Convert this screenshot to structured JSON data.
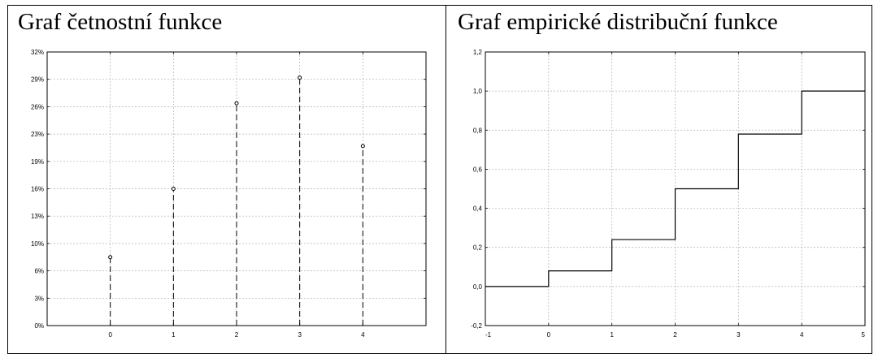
{
  "chart_data": [
    {
      "type": "stem",
      "title": "Graf četnostní funkce",
      "xlabel": "",
      "ylabel": "",
      "x_ticks": [
        "0",
        "1",
        "2",
        "3",
        "4"
      ],
      "y_ticks": [
        "0%",
        "3%",
        "6%",
        "10%",
        "13%",
        "16%",
        "19%",
        "23%",
        "26%",
        "29%",
        "32%"
      ],
      "ylim": [
        0,
        32
      ],
      "xlim": [
        -1,
        5
      ],
      "x": [
        0,
        1,
        2,
        3,
        4
      ],
      "values": [
        8,
        16,
        26,
        29,
        21
      ],
      "grid": true,
      "marker": "open-circle",
      "line_style": "dashed"
    },
    {
      "type": "step",
      "title": "Graf empirické distribuční funkce",
      "xlabel": "",
      "ylabel": "",
      "x_ticks": [
        "-1",
        "0",
        "1",
        "2",
        "3",
        "4",
        "5"
      ],
      "y_ticks": [
        "-0,2",
        "0,0",
        "0,2",
        "0,4",
        "0,6",
        "0,8",
        "1,0",
        "1,2"
      ],
      "xlim": [
        -1,
        5
      ],
      "ylim": [
        -0.2,
        1.2
      ],
      "steps": [
        {
          "x0": -1,
          "x1": 0,
          "y": 0.0
        },
        {
          "x0": 0,
          "x1": 1,
          "y": 0.08
        },
        {
          "x0": 1,
          "x1": 2,
          "y": 0.24
        },
        {
          "x0": 2,
          "x1": 3,
          "y": 0.5
        },
        {
          "x0": 3,
          "x1": 4,
          "y": 0.78
        },
        {
          "x0": 4,
          "x1": 5,
          "y": 1.0
        }
      ],
      "grid": true
    }
  ]
}
